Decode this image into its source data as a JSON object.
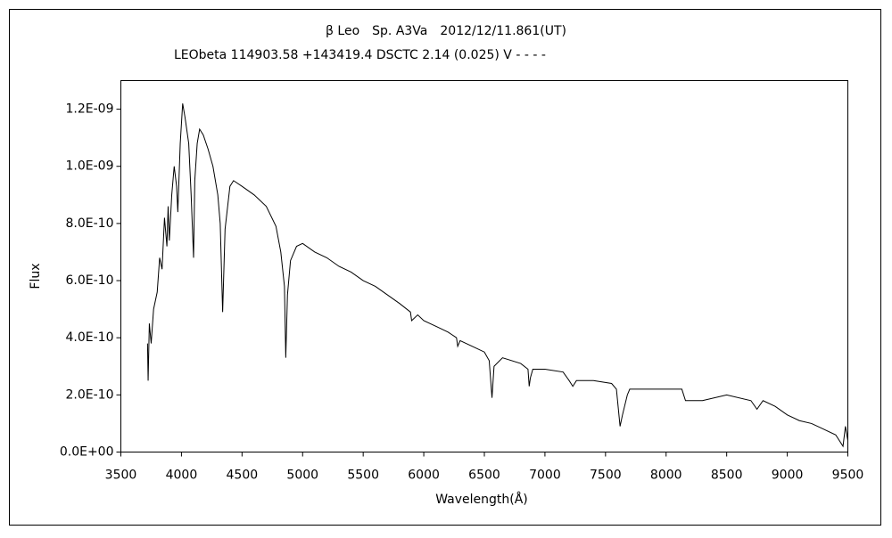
{
  "chart_data": {
    "type": "line",
    "title": "β Leo　Sp. A3Va　2012/12/11.861(UT)",
    "subtitle": "LEObeta 114903.58 +143419.4 DSCTC 2.14 (0.025) V - - - -",
    "x_label": "Wavelength(Å)",
    "y_label": "Flux",
    "xlim": [
      3500,
      9500
    ],
    "xticks": [
      3500,
      4000,
      4500,
      5000,
      5500,
      6000,
      6500,
      7000,
      7500,
      8000,
      8500,
      9000,
      9500
    ],
    "ylim": [
      0,
      1.3e-09
    ],
    "yticks": [
      {
        "value": 0,
        "label": "0.0E+00"
      },
      {
        "value": 2e-10,
        "label": "2.0E-10"
      },
      {
        "value": 4e-10,
        "label": "4.0E-10"
      },
      {
        "value": 6e-10,
        "label": "6.0E-10"
      },
      {
        "value": 8e-10,
        "label": "8.0E-10"
      },
      {
        "value": 1e-09,
        "label": "1.0E-09"
      },
      {
        "value": 1.2e-09,
        "label": "1.2E-09"
      }
    ],
    "series": [
      {
        "color": "#000000",
        "x": [
          3720,
          3725,
          3735,
          3750,
          3770,
          3800,
          3820,
          3840,
          3860,
          3880,
          3890,
          3900,
          3920,
          3940,
          3960,
          3970,
          3990,
          4010,
          4030,
          4060,
          4080,
          4100,
          4110,
          4130,
          4150,
          4180,
          4220,
          4260,
          4300,
          4320,
          4340,
          4360,
          4400,
          4430,
          4500,
          4600,
          4700,
          4780,
          4820,
          4850,
          4861,
          4875,
          4900,
          4950,
          5000,
          5100,
          5200,
          5300,
          5400,
          5500,
          5600,
          5700,
          5800,
          5890,
          5900,
          5950,
          6000,
          6100,
          6200,
          6270,
          6280,
          6300,
          6400,
          6500,
          6540,
          6563,
          6580,
          6650,
          6800,
          6860,
          6870,
          6880,
          6900,
          7000,
          7150,
          7200,
          7230,
          7260,
          7400,
          7550,
          7590,
          7620,
          7640,
          7680,
          7700,
          7900,
          8000,
          8130,
          8160,
          8300,
          8500,
          8700,
          8750,
          8800,
          8900,
          9000,
          9100,
          9200,
          9300,
          9400,
          9460,
          9480,
          9500
        ],
        "values": [
          3.8e-10,
          2.5e-10,
          4.5e-10,
          3.8e-10,
          5e-10,
          5.6e-10,
          6.8e-10,
          6.4e-10,
          8.2e-10,
          7.2e-10,
          8.6e-10,
          7.4e-10,
          9e-10,
          1e-09,
          9.3e-10,
          8.4e-10,
          1.08e-09,
          1.22e-09,
          1.17e-09,
          1.08e-09,
          9e-10,
          6.8e-10,
          9.5e-10,
          1.08e-09,
          1.13e-09,
          1.11e-09,
          1.06e-09,
          1e-09,
          9e-10,
          8e-10,
          4.9e-10,
          7.8e-10,
          9.3e-10,
          9.5e-10,
          9.3e-10,
          9e-10,
          8.6e-10,
          7.9e-10,
          7e-10,
          5.8e-10,
          3.3e-10,
          5.5e-10,
          6.7e-10,
          7.2e-10,
          7.3e-10,
          7e-10,
          6.8e-10,
          6.5e-10,
          6.3e-10,
          6e-10,
          5.8e-10,
          5.5e-10,
          5.2e-10,
          4.9e-10,
          4.6e-10,
          4.8e-10,
          4.6e-10,
          4.4e-10,
          4.2e-10,
          4e-10,
          3.7e-10,
          3.9e-10,
          3.7e-10,
          3.5e-10,
          3.2e-10,
          1.9e-10,
          3e-10,
          3.3e-10,
          3.1e-10,
          2.9e-10,
          2.3e-10,
          2.6e-10,
          2.9e-10,
          2.9e-10,
          2.8e-10,
          2.5e-10,
          2.3e-10,
          2.5e-10,
          2.5e-10,
          2.4e-10,
          2.2e-10,
          9e-11,
          1.3e-10,
          2e-10,
          2.2e-10,
          2.2e-10,
          2.2e-10,
          2.2e-10,
          1.8e-10,
          1.8e-10,
          2e-10,
          1.8e-10,
          1.5e-10,
          1.8e-10,
          1.6e-10,
          1.3e-10,
          1.1e-10,
          1e-10,
          8e-11,
          6e-11,
          2e-11,
          9e-11,
          4e-11
        ]
      }
    ]
  }
}
